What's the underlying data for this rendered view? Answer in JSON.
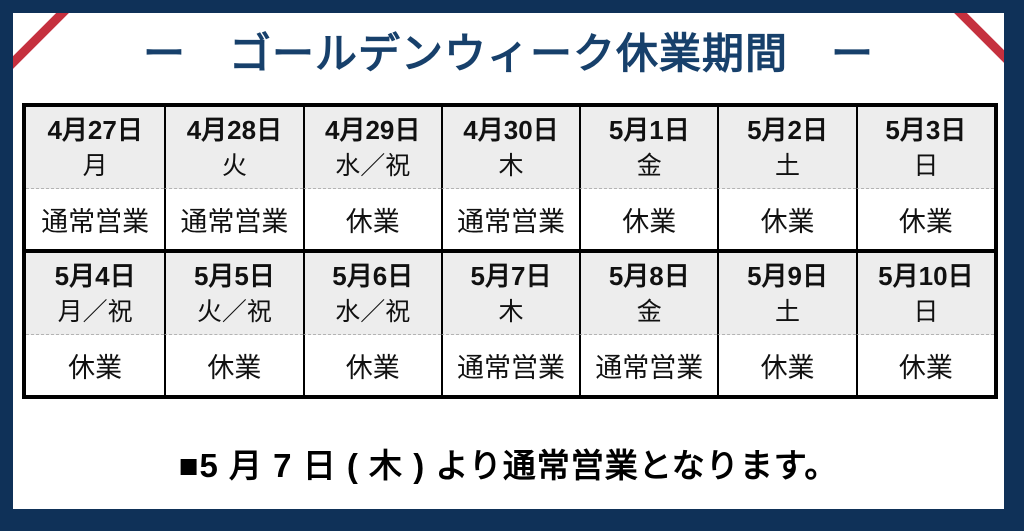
{
  "page": {
    "title": "ー　ゴールデンウィーク休業期間　ー",
    "footer_note": "■5 月 7 日 ( 木 ) より通常営業となります。"
  },
  "colors": {
    "frame_navy": "#0f3158",
    "title_navy": "#17406b",
    "corner_stripe_red": "#c5303e",
    "header_cell_gray": "#ededed",
    "table_border_black": "#000000"
  },
  "schedule": {
    "weeks": [
      {
        "days": [
          {
            "date": "4月27日",
            "weekday": "月",
            "status": "通常営業"
          },
          {
            "date": "4月28日",
            "weekday": "火",
            "status": "通常営業"
          },
          {
            "date": "4月29日",
            "weekday": "水／祝",
            "status": "休業"
          },
          {
            "date": "4月30日",
            "weekday": "木",
            "status": "通常営業"
          },
          {
            "date": "5月1日",
            "weekday": "金",
            "status": "休業"
          },
          {
            "date": "5月2日",
            "weekday": "土",
            "status": "休業"
          },
          {
            "date": "5月3日",
            "weekday": "日",
            "status": "休業"
          }
        ]
      },
      {
        "days": [
          {
            "date": "5月4日",
            "weekday": "月／祝",
            "status": "休業"
          },
          {
            "date": "5月5日",
            "weekday": "火／祝",
            "status": "休業"
          },
          {
            "date": "5月6日",
            "weekday": "水／祝",
            "status": "休業"
          },
          {
            "date": "5月7日",
            "weekday": "木",
            "status": "通常営業"
          },
          {
            "date": "5月8日",
            "weekday": "金",
            "status": "通常営業"
          },
          {
            "date": "5月9日",
            "weekday": "土",
            "status": "休業"
          },
          {
            "date": "5月10日",
            "weekday": "日",
            "status": "休業"
          }
        ]
      }
    ]
  }
}
